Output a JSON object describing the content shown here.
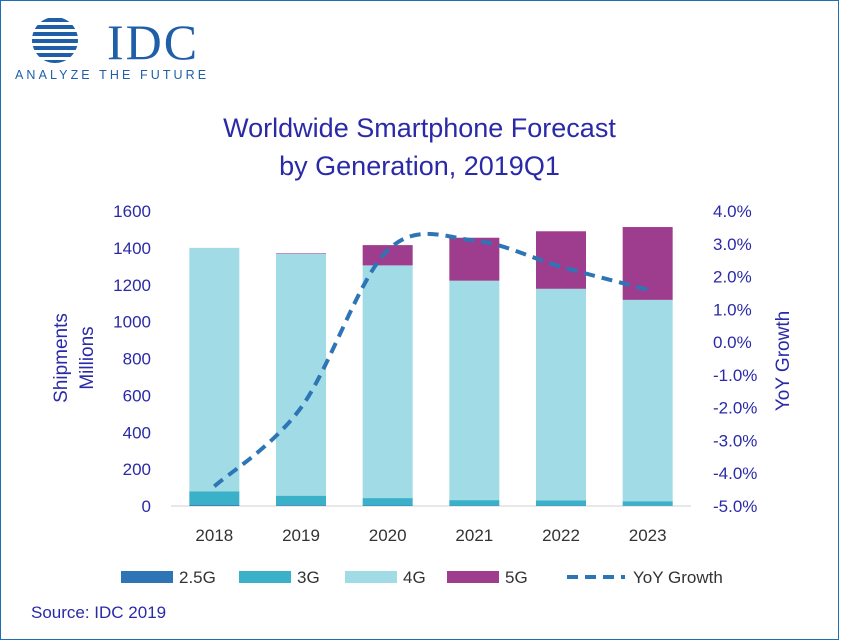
{
  "logo": {
    "word": "IDC",
    "tagline": "ANALYZE THE FUTURE"
  },
  "source": "Source: IDC 2019",
  "chart_data": {
    "type": "bar",
    "stacked": true,
    "title_lines": [
      "Worldwide Smartphone Forecast",
      "by Generation, 2019Q1"
    ],
    "categories": [
      "2018",
      "2019",
      "2020",
      "2021",
      "2022",
      "2023"
    ],
    "y_left": {
      "label_lines": [
        "Shipments",
        "Millions"
      ],
      "ylim": [
        0,
        1600
      ],
      "ticks": [
        "0",
        "200",
        "400",
        "600",
        "800",
        "1000",
        "1200",
        "1400",
        "1600"
      ]
    },
    "y_right": {
      "label": "YoY Growth",
      "ylim": [
        -5.0,
        4.0
      ],
      "ticks": [
        "-5.0%",
        "-4.0%",
        "-3.0%",
        "-2.0%",
        "-1.0%",
        "0.0%",
        "1.0%",
        "2.0%",
        "3.0%",
        "4.0%"
      ]
    },
    "series": [
      {
        "name": "2.5G",
        "axis": "left",
        "color": "#2e75b6",
        "values": [
          5,
          4,
          3,
          2,
          2,
          1
        ]
      },
      {
        "name": "3G",
        "axis": "left",
        "color": "#3bb0c9",
        "values": [
          75,
          52,
          40,
          30,
          28,
          25
        ]
      },
      {
        "name": "4G",
        "axis": "left",
        "color": "#a0dbe6",
        "values": [
          1320,
          1312,
          1262,
          1190,
          1148,
          1092
        ]
      },
      {
        "name": "5G",
        "axis": "left",
        "color": "#9e3c8e",
        "values": [
          0,
          3,
          110,
          233,
          312,
          395
        ]
      },
      {
        "name": "YoY Growth",
        "axis": "right",
        "type": "line",
        "style": "dashed",
        "color": "#2e75b6",
        "values": [
          -4.4,
          -2.0,
          2.8,
          3.1,
          2.3,
          1.6
        ]
      }
    ],
    "legend_position": "bottom",
    "grid": false
  }
}
